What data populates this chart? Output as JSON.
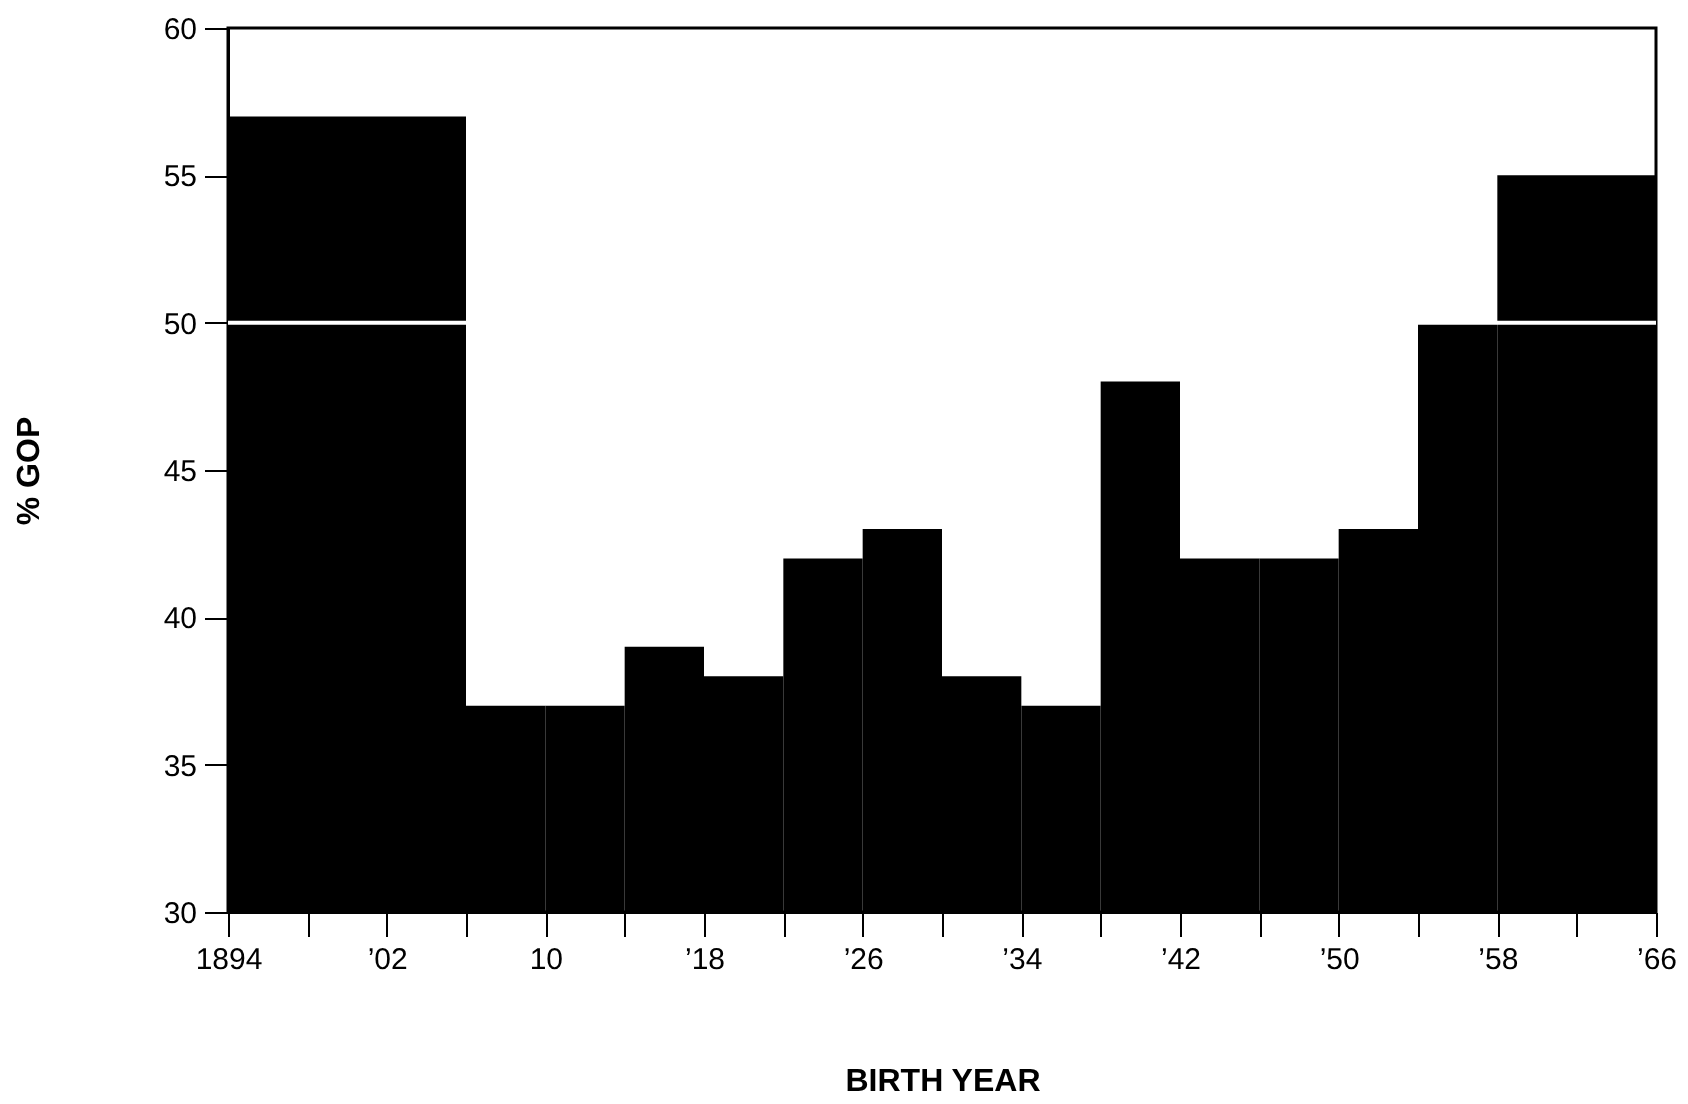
{
  "chart_data": {
    "type": "histogram",
    "xlabel": "BIRTH YEAR",
    "ylabel": "% GOP",
    "bins": [
      1894,
      1906,
      1910,
      1914,
      1918,
      1922,
      1926,
      1930,
      1934,
      1938,
      1942,
      1946,
      1950,
      1954,
      1958,
      1966
    ],
    "values": [
      57,
      37,
      37,
      39,
      38,
      42,
      43,
      38,
      37,
      48,
      42,
      42,
      43,
      50,
      55
    ],
    "color": "#000000",
    "xlim": [
      1894,
      1966
    ],
    "ylim": [
      30,
      60
    ],
    "xticks": [
      {
        "value": 1894,
        "label": "1894"
      },
      {
        "value": 1898,
        "label": null
      },
      {
        "value": 1902,
        "label": "’02"
      },
      {
        "value": 1906,
        "label": null
      },
      {
        "value": 1910,
        "label": "10"
      },
      {
        "value": 1914,
        "label": null
      },
      {
        "value": 1918,
        "label": "’18"
      },
      {
        "value": 1922,
        "label": null
      },
      {
        "value": 1926,
        "label": "’26"
      },
      {
        "value": 1930,
        "label": null
      },
      {
        "value": 1934,
        "label": "’34"
      },
      {
        "value": 1938,
        "label": null
      },
      {
        "value": 1942,
        "label": "’42"
      },
      {
        "value": 1946,
        "label": null
      },
      {
        "value": 1950,
        "label": "’50"
      },
      {
        "value": 1954,
        "label": null
      },
      {
        "value": 1958,
        "label": "’58"
      },
      {
        "value": 1962,
        "label": null
      },
      {
        "value": 1966,
        "label": "’66"
      }
    ],
    "yticks": [
      30,
      35,
      40,
      45,
      50,
      55,
      60
    ],
    "ref_lines": [
      {
        "axis": "y",
        "value": 50,
        "color": "#ffffff"
      }
    ],
    "grid": false
  }
}
